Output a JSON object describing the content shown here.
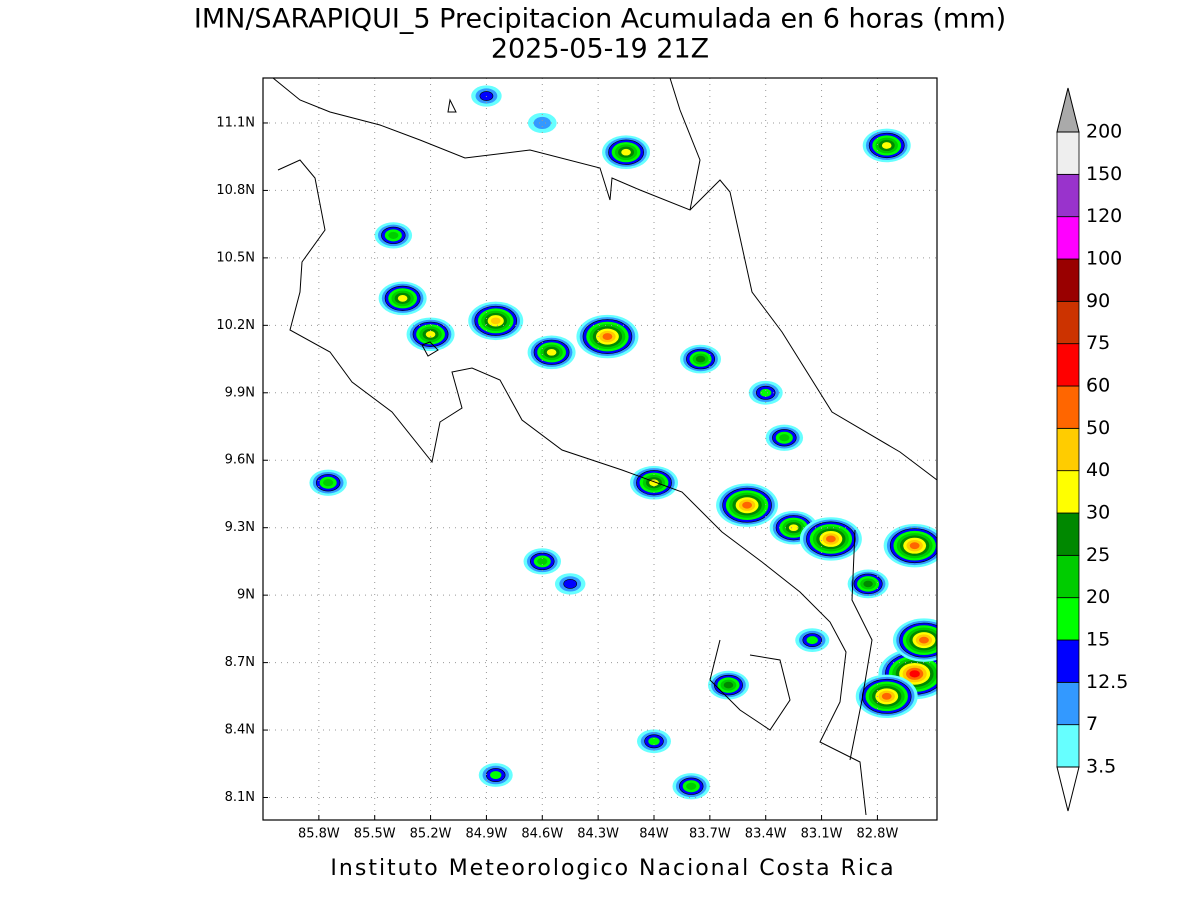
{
  "header": {
    "title": "IMN/SARAPIQUI_5 Precipitacion Acumulada en 6 horas (mm)",
    "subtitle": "2025-05-19 21Z"
  },
  "footer": "Instituto Meteorologico Nacional Costa Rica",
  "map": {
    "xlim": [
      -86.1,
      -82.48
    ],
    "ylim": [
      8.0,
      11.3
    ],
    "grid": true,
    "xticks": [
      {
        "value": -85.8,
        "label": "85.8W"
      },
      {
        "value": -85.5,
        "label": "85.5W"
      },
      {
        "value": -85.2,
        "label": "85.2W"
      },
      {
        "value": -84.9,
        "label": "84.9W"
      },
      {
        "value": -84.6,
        "label": "84.6W"
      },
      {
        "value": -84.3,
        "label": "84.3W"
      },
      {
        "value": -84.0,
        "label": "84W"
      },
      {
        "value": -83.7,
        "label": "83.7W"
      },
      {
        "value": -83.4,
        "label": "83.4W"
      },
      {
        "value": -83.1,
        "label": "83.1W"
      },
      {
        "value": -82.8,
        "label": "82.8W"
      }
    ],
    "yticks": [
      {
        "value": 8.1,
        "label": "8.1N"
      },
      {
        "value": 8.4,
        "label": "8.4N"
      },
      {
        "value": 8.7,
        "label": "8.7N"
      },
      {
        "value": 9.0,
        "label": "9N"
      },
      {
        "value": 9.3,
        "label": "9.3N"
      },
      {
        "value": 9.6,
        "label": "9.6N"
      },
      {
        "value": 9.9,
        "label": "9.9N"
      },
      {
        "value": 10.2,
        "label": "10.2N"
      },
      {
        "value": 10.5,
        "label": "10.5N"
      },
      {
        "value": 10.8,
        "label": "10.8N"
      },
      {
        "value": 11.1,
        "label": "11.1N"
      }
    ],
    "cells": [
      {
        "lon": -84.25,
        "lat": 10.15,
        "peak": 60
      },
      {
        "lon": -84.85,
        "lat": 10.22,
        "peak": 50
      },
      {
        "lon": -84.55,
        "lat": 10.08,
        "peak": 40
      },
      {
        "lon": -84.15,
        "lat": 10.97,
        "peak": 40
      },
      {
        "lon": -82.75,
        "lat": 11.0,
        "peak": 40
      },
      {
        "lon": -85.35,
        "lat": 10.32,
        "peak": 40
      },
      {
        "lon": -85.2,
        "lat": 10.16,
        "peak": 40
      },
      {
        "lon": -82.6,
        "lat": 8.65,
        "peak": 75
      },
      {
        "lon": -82.75,
        "lat": 8.55,
        "peak": 60
      },
      {
        "lon": -83.5,
        "lat": 9.4,
        "peak": 60
      },
      {
        "lon": -83.25,
        "lat": 9.3,
        "peak": 40
      },
      {
        "lon": -83.05,
        "lat": 9.25,
        "peak": 60
      },
      {
        "lon": -82.6,
        "lat": 9.22,
        "peak": 60
      },
      {
        "lon": -84.0,
        "lat": 9.5,
        "peak": 40
      },
      {
        "lon": -83.75,
        "lat": 10.05,
        "peak": 30
      },
      {
        "lon": -84.6,
        "lat": 9.15,
        "peak": 25
      },
      {
        "lon": -83.6,
        "lat": 8.6,
        "peak": 30
      },
      {
        "lon": -82.55,
        "lat": 8.8,
        "peak": 60
      },
      {
        "lon": -84.9,
        "lat": 11.22,
        "peak": 15
      },
      {
        "lon": -85.75,
        "lat": 9.5,
        "peak": 25
      },
      {
        "lon": -83.8,
        "lat": 8.15,
        "peak": 25
      },
      {
        "lon": -84.85,
        "lat": 8.2,
        "peak": 20
      },
      {
        "lon": -84.0,
        "lat": 8.35,
        "peak": 20
      },
      {
        "lon": -85.4,
        "lat": 10.6,
        "peak": 25
      },
      {
        "lon": -83.4,
        "lat": 9.9,
        "peak": 20
      },
      {
        "lon": -82.85,
        "lat": 9.05,
        "peak": 30
      },
      {
        "lon": -84.6,
        "lat": 11.1,
        "peak": 12.5
      },
      {
        "lon": -83.15,
        "lat": 8.8,
        "peak": 20
      },
      {
        "lon": -84.45,
        "lat": 9.05,
        "peak": 15
      },
      {
        "lon": -83.3,
        "lat": 9.7,
        "peak": 25
      }
    ]
  },
  "colorbar": {
    "levels": [
      3.5,
      7,
      12.5,
      15,
      20,
      25,
      30,
      40,
      50,
      60,
      75,
      90,
      100,
      120,
      150,
      200
    ],
    "colors": [
      "#66ffff",
      "#3399ff",
      "#0000ff",
      "#00ff00",
      "#00cc00",
      "#008800",
      "#ffff00",
      "#ffcc00",
      "#ff6600",
      "#ff0000",
      "#cc3300",
      "#990000",
      "#ff00ff",
      "#9933cc",
      "#eeeeee"
    ],
    "over_color": "#aaaaaa",
    "under_color": "#ffffff"
  }
}
